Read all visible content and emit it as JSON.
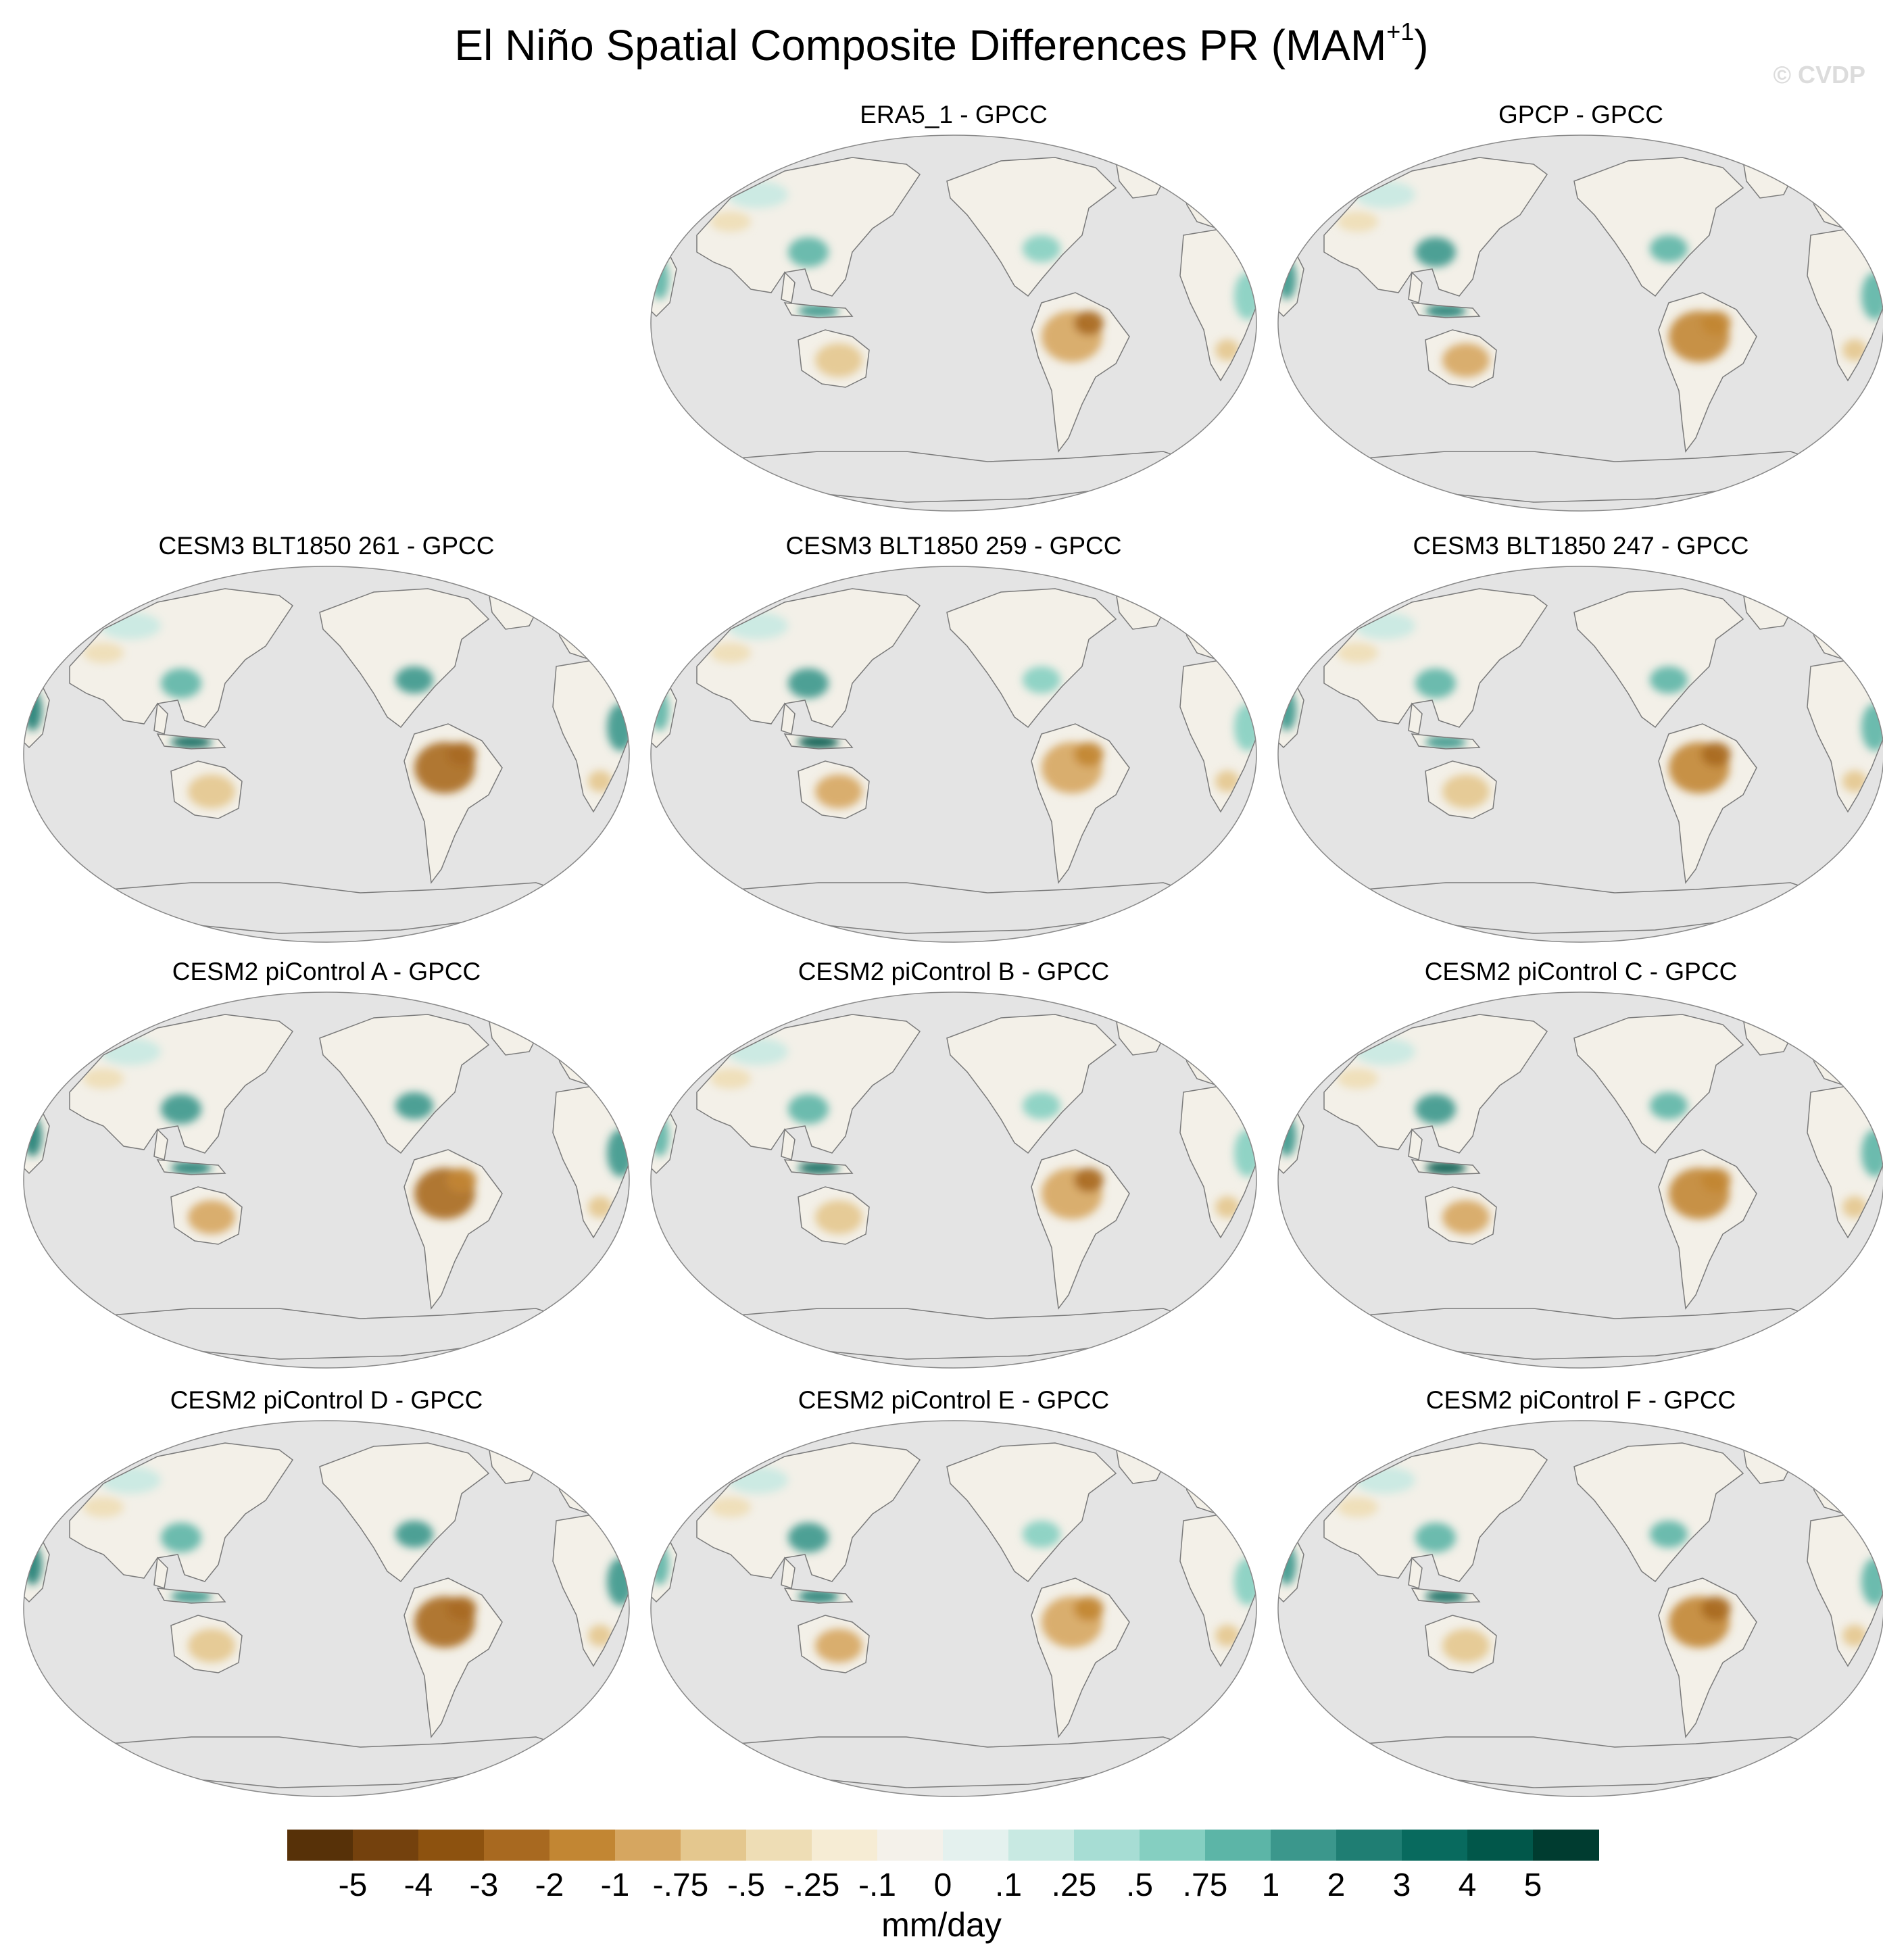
{
  "title": {
    "main": "El Niño Spatial Composite Differences PR (MAM",
    "superscript": "+1",
    "close": ")"
  },
  "watermark": "© CVDP",
  "projection": "Robinson-like ellipse, Pacific-centered",
  "colors": {
    "ocean_mask": "#e4e4e4",
    "coastline": "#7a7a7a",
    "neutral_land": "#f3f0e8"
  },
  "panels": [
    {
      "title": "ERA5_1 - GPCC",
      "row": 0,
      "col": 1
    },
    {
      "title": "GPCP - GPCC",
      "row": 0,
      "col": 2
    },
    {
      "title": "CESM3 BLT1850 261 - GPCC",
      "row": 1,
      "col": 0
    },
    {
      "title": "CESM3 BLT1850 259 - GPCC",
      "row": 1,
      "col": 1
    },
    {
      "title": "CESM3 BLT1850 247 - GPCC",
      "row": 1,
      "col": 2
    },
    {
      "title": "CESM2 piControl A - GPCC",
      "row": 2,
      "col": 0
    },
    {
      "title": "CESM2 piControl B - GPCC",
      "row": 2,
      "col": 1
    },
    {
      "title": "CESM2 piControl C - GPCC",
      "row": 2,
      "col": 2
    },
    {
      "title": "CESM2 piControl D - GPCC",
      "row": 3,
      "col": 0
    },
    {
      "title": "CESM2 piControl E - GPCC",
      "row": 3,
      "col": 1
    },
    {
      "title": "CESM2 piControl F - GPCC",
      "row": 3,
      "col": 2
    }
  ],
  "colorbar": {
    "units": "mm/day",
    "colors": [
      "#573108",
      "#74410d",
      "#8d520f",
      "#a86920",
      "#c28633",
      "#d6a660",
      "#e4c78e",
      "#eeddb5",
      "#f6ecd4",
      "#f4f1ea",
      "#e4f1ee",
      "#c8e9e2",
      "#a7ddd4",
      "#85cfc1",
      "#5cb5a7",
      "#3b978c",
      "#1f7e73",
      "#086a5e",
      "#01574a",
      "#003c30"
    ],
    "ticks": [
      "-5",
      "-4",
      "-3",
      "-2",
      "-1",
      "-.75",
      "-.5",
      "-.25",
      "-.1",
      "0",
      ".1",
      ".25",
      ".5",
      ".75",
      "1",
      "2",
      "3",
      "4",
      "5"
    ]
  },
  "chart_data": {
    "type": "heatmap",
    "variable": "PR",
    "season": "MAM+1",
    "units": "mm/day",
    "levels": [
      -5,
      -4,
      -3,
      -2,
      -1,
      -0.75,
      -0.5,
      -0.25,
      -0.1,
      0,
      0.1,
      0.25,
      0.5,
      0.75,
      1,
      2,
      3,
      4,
      5
    ],
    "panels": [
      "ERA5_1 - GPCC",
      "GPCP - GPCC",
      "CESM3 BLT1850 261 - GPCC",
      "CESM3 BLT1850 259 - GPCC",
      "CESM3 BLT1850 247 - GPCC",
      "CESM2 piControl A - GPCC",
      "CESM2 piControl B - GPCC",
      "CESM2 piControl C - GPCC",
      "CESM2 piControl D - GPCC",
      "CESM2 piControl E - GPCC",
      "CESM2 piControl F - GPCC"
    ]
  }
}
